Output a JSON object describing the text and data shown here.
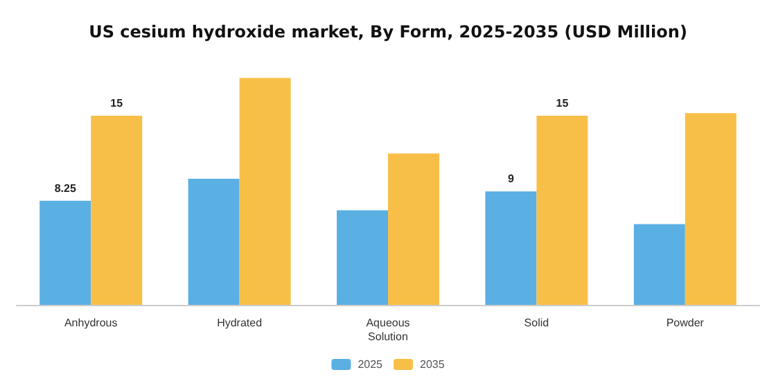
{
  "chart_data": {
    "type": "bar",
    "title": "US cesium hydroxide market, By Form, 2025-2035 (USD Million)",
    "categories": [
      "Anhydrous",
      "Hydrated",
      "Aqueous\nSolution",
      "Solid",
      "Powder"
    ],
    "series": [
      {
        "name": "2025",
        "color": "#5aafe3",
        "values": [
          8.25,
          10.0,
          7.5,
          9,
          6.4
        ],
        "value_labels": [
          "8.25",
          null,
          null,
          "9",
          null
        ]
      },
      {
        "name": "2035",
        "color": "#f8bf48",
        "values": [
          15,
          18.0,
          12.0,
          15,
          15.2
        ],
        "value_labels": [
          "15",
          null,
          null,
          "15",
          null
        ]
      }
    ],
    "legend": "bottom"
  }
}
